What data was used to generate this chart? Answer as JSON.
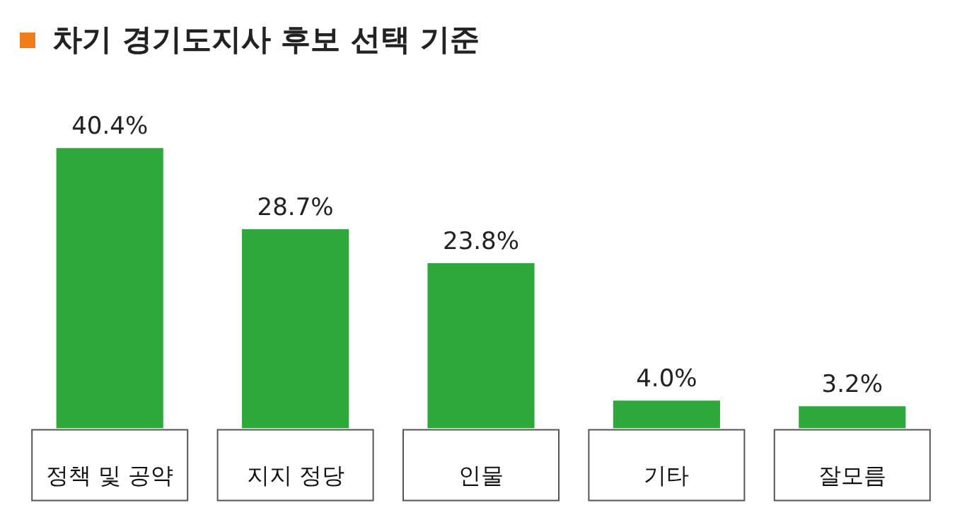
{
  "chart_data": {
    "type": "bar",
    "title": "차기 경기도지사 후보 선택 기준",
    "categories": [
      "정책 및 공약",
      "지지 정당",
      "인물",
      "기타",
      "잘모름"
    ],
    "values": [
      40.4,
      28.7,
      23.8,
      4.0,
      3.2
    ],
    "value_labels": [
      "40.4%",
      "28.7%",
      "23.8%",
      "4.0%",
      "3.2%"
    ],
    "color": "#2ea83a",
    "grid": false,
    "legend": false
  }
}
